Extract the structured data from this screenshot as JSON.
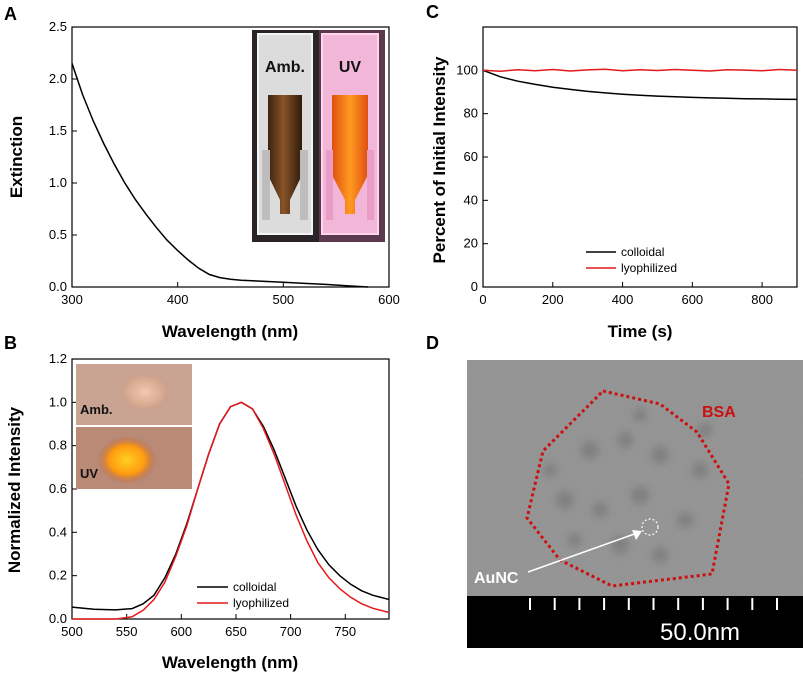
{
  "panels": {
    "a": "A",
    "b": "B",
    "c": "C",
    "d": "D"
  },
  "colors": {
    "colloidal": "#000000",
    "lyophilized": "#e41a1c",
    "bsa_outline": "#cc1010",
    "bsa_label": "#cc1010"
  },
  "chart_data": [
    {
      "id": "A",
      "type": "line",
      "xlabel": "Wavelength (nm)",
      "ylabel": "Extinction",
      "xlim": [
        300,
        600
      ],
      "ylim": [
        0,
        2.5
      ],
      "xticks": [
        300,
        400,
        500,
        600
      ],
      "yticks": [
        0.0,
        0.5,
        1.0,
        1.5,
        2.0,
        2.5
      ],
      "ytick_labels": [
        "0.0",
        "0.5",
        "1.0",
        "1.5",
        "2.0",
        "2.5"
      ],
      "series": [
        {
          "name": "extinction",
          "x": [
            300,
            310,
            320,
            330,
            340,
            350,
            360,
            370,
            380,
            390,
            400,
            410,
            420,
            430,
            440,
            450,
            460,
            480,
            500,
            520,
            540,
            560,
            580
          ],
          "y": [
            2.15,
            1.85,
            1.6,
            1.38,
            1.18,
            1.0,
            0.84,
            0.7,
            0.57,
            0.45,
            0.35,
            0.26,
            0.18,
            0.12,
            0.09,
            0.075,
            0.065,
            0.055,
            0.045,
            0.035,
            0.025,
            0.012,
            0.0
          ]
        }
      ],
      "inset_labels": [
        "Amb.",
        "UV"
      ]
    },
    {
      "id": "B",
      "type": "line",
      "xlabel": "Wavelength (nm)",
      "ylabel": "Normalized Intensity",
      "xlim": [
        500,
        790
      ],
      "ylim": [
        0,
        1.2
      ],
      "xticks": [
        500,
        550,
        600,
        650,
        700,
        750
      ],
      "yticks": [
        0.0,
        0.2,
        0.4,
        0.6,
        0.8,
        1.0,
        1.2
      ],
      "ytick_labels": [
        "0.0",
        "0.2",
        "0.4",
        "0.6",
        "0.8",
        "1.0",
        "1.2"
      ],
      "legend": [
        "colloidal",
        "lyophilized"
      ],
      "series": [
        {
          "name": "colloidal",
          "x": [
            500,
            520,
            540,
            555,
            565,
            575,
            585,
            595,
            605,
            615,
            625,
            635,
            645,
            655,
            665,
            675,
            685,
            695,
            705,
            715,
            725,
            735,
            745,
            755,
            765,
            775,
            790
          ],
          "y": [
            0.055,
            0.045,
            0.042,
            0.048,
            0.07,
            0.11,
            0.19,
            0.3,
            0.44,
            0.6,
            0.76,
            0.9,
            0.98,
            1.0,
            0.97,
            0.89,
            0.78,
            0.65,
            0.52,
            0.41,
            0.32,
            0.25,
            0.2,
            0.16,
            0.13,
            0.11,
            0.09
          ]
        },
        {
          "name": "lyophilized",
          "x": [
            500,
            520,
            540,
            555,
            565,
            575,
            585,
            595,
            605,
            615,
            625,
            635,
            645,
            655,
            665,
            675,
            685,
            695,
            705,
            715,
            725,
            735,
            745,
            755,
            765,
            775,
            790
          ],
          "y": [
            0.0,
            0.0,
            0.0,
            0.01,
            0.04,
            0.09,
            0.17,
            0.29,
            0.43,
            0.6,
            0.76,
            0.9,
            0.98,
            1.0,
            0.97,
            0.88,
            0.76,
            0.62,
            0.48,
            0.36,
            0.26,
            0.19,
            0.14,
            0.1,
            0.07,
            0.05,
            0.03
          ]
        }
      ],
      "inset_labels": [
        "Amb.",
        "UV"
      ]
    },
    {
      "id": "C",
      "type": "line",
      "xlabel": "Time (s)",
      "ylabel": "Percent of Initial Intensity",
      "xlim": [
        0,
        900
      ],
      "ylim": [
        0,
        120
      ],
      "xticks": [
        0,
        200,
        400,
        600,
        800
      ],
      "yticks": [
        0,
        20,
        40,
        60,
        80,
        100
      ],
      "ytick_labels": [
        "0",
        "20",
        "40",
        "60",
        "80",
        "100"
      ],
      "legend": [
        "colloidal",
        "lyophilized"
      ],
      "series": [
        {
          "name": "colloidal",
          "x": [
            0,
            50,
            100,
            150,
            200,
            250,
            300,
            350,
            400,
            450,
            500,
            550,
            600,
            650,
            700,
            750,
            800,
            850,
            900
          ],
          "y": [
            100,
            97,
            95,
            93.5,
            92.2,
            91.2,
            90.3,
            89.6,
            89.0,
            88.5,
            88.1,
            87.8,
            87.5,
            87.3,
            87.1,
            86.9,
            86.8,
            86.7,
            86.6
          ]
        },
        {
          "name": "lyophilized",
          "x": [
            0,
            50,
            100,
            150,
            200,
            250,
            300,
            350,
            400,
            450,
            500,
            550,
            600,
            650,
            700,
            750,
            800,
            850,
            900
          ],
          "y": [
            100,
            99.6,
            100.3,
            99.8,
            100.4,
            99.7,
            100.2,
            100.5,
            99.8,
            100.3,
            99.9,
            100.4,
            100.0,
            99.7,
            100.3,
            100.1,
            99.8,
            100.4,
            100.0
          ]
        }
      ]
    }
  ],
  "tem": {
    "bsa_label": "BSA",
    "aunc_label": "AuNC",
    "scale_label": "50.0nm"
  }
}
